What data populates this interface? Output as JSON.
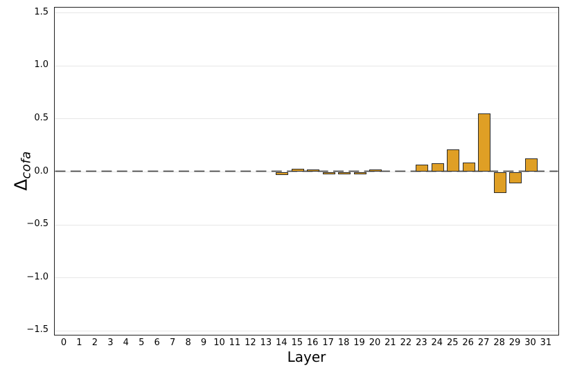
{
  "chart_data": {
    "type": "bar",
    "title": "",
    "xlabel": "Layer",
    "ylabel": {
      "symbol": "Δ",
      "subscript": "cofa",
      "display": "Δ_cofa"
    },
    "categories": [
      0,
      1,
      2,
      3,
      4,
      5,
      6,
      7,
      8,
      9,
      10,
      11,
      12,
      13,
      14,
      15,
      16,
      17,
      18,
      19,
      20,
      21,
      22,
      23,
      24,
      25,
      26,
      27,
      28,
      29,
      30,
      31
    ],
    "values": [
      0,
      0,
      0,
      0,
      0,
      0,
      0,
      0,
      0,
      0,
      0,
      0,
      0,
      0,
      -0.03,
      0.03,
      0.02,
      -0.02,
      -0.02,
      -0.02,
      0.02,
      0,
      0,
      0.07,
      0.08,
      0.21,
      0.09,
      0.55,
      -0.2,
      -0.11,
      0.13,
      0
    ],
    "ylim": [
      -1.55,
      1.55
    ],
    "yticks": [
      1.5,
      1.0,
      0.5,
      0.0,
      -0.5,
      -1.0,
      -1.5
    ],
    "ytick_labels": [
      "1.5",
      "1.0",
      "0.5",
      "0.0",
      "−0.5",
      "−1.0",
      "−1.5"
    ],
    "grid": {
      "axis": "y",
      "on": true,
      "color": "#e7e7e7"
    },
    "zero_line": {
      "value": 0,
      "style": "dashed",
      "color": "#4a4a4a"
    },
    "legend": null,
    "colors": {
      "bar_fill": "#df9f25",
      "bar_edge": "#2a2a2a",
      "spine": "#1f1f1f",
      "background": "#ffffff",
      "text": "#000000"
    }
  }
}
